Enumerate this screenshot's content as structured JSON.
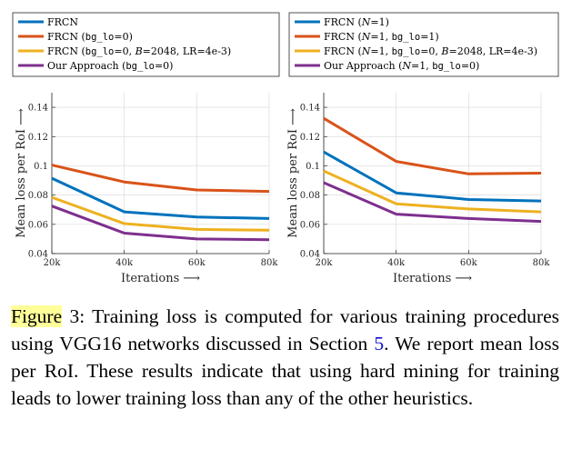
{
  "chart_data": [
    {
      "type": "line",
      "xlabel": "Iterations ⟶",
      "ylabel": "Mean loss per RoI ⟶",
      "x": [
        20000,
        40000,
        60000,
        80000
      ],
      "xticks": [
        "20k",
        "40k",
        "60k",
        "80k"
      ],
      "ylim": [
        0.04,
        0.15
      ],
      "yticks": [
        "0.04",
        "0.06",
        "0.08",
        "0.1",
        "0.12",
        "0.14"
      ],
      "grid": true,
      "legend": "top",
      "series": [
        {
          "name": "FRCN",
          "color": "#0072bd",
          "values": [
            0.0915,
            0.0685,
            0.065,
            0.064
          ]
        },
        {
          "name": "FRCN (bg_lo=0)",
          "color": "#d95319",
          "values": [
            0.1005,
            0.089,
            0.0835,
            0.0825
          ]
        },
        {
          "name": "FRCN (bg_lo=0, B=2048, LR=4e-3)",
          "color": "#edb120",
          "values": [
            0.0785,
            0.0605,
            0.0565,
            0.056
          ]
        },
        {
          "name": "Our Approach (bg_lo=0)",
          "color": "#7e2f8e",
          "values": [
            0.0725,
            0.054,
            0.05,
            0.0495
          ]
        }
      ]
    },
    {
      "type": "line",
      "xlabel": "Iterations ⟶",
      "ylabel": "Mean loss per RoI ⟶",
      "x": [
        20000,
        40000,
        60000,
        80000
      ],
      "xticks": [
        "20k",
        "40k",
        "60k",
        "80k"
      ],
      "ylim": [
        0.04,
        0.15
      ],
      "yticks": [
        "0.04",
        "0.06",
        "0.08",
        "0.1",
        "0.12",
        "0.14"
      ],
      "grid": true,
      "legend": "top",
      "series": [
        {
          "name": "FRCN (N=1)",
          "color": "#0072bd",
          "values": [
            0.1095,
            0.0815,
            0.077,
            0.076
          ]
        },
        {
          "name": "FRCN (N=1, bg_lo=1)",
          "color": "#d95319",
          "values": [
            0.1325,
            0.103,
            0.0945,
            0.095
          ]
        },
        {
          "name": "FRCN (N=1, bg_lo=0, B=2048, LR=4e-3)",
          "color": "#edb120",
          "values": [
            0.0965,
            0.074,
            0.0705,
            0.0685
          ]
        },
        {
          "name": "Our Approach (N=1, bg_lo=0)",
          "color": "#7e2f8e",
          "values": [
            0.0885,
            0.067,
            0.064,
            0.062
          ]
        }
      ]
    }
  ],
  "caption": {
    "figure_word": "Figure",
    "figure_num": " 3: Training loss is computed for various training procedures using VGG16 networks discussed in Section ",
    "section_ref": "5",
    "rest": ". We report mean loss per RoI. These results indicate that using hard mining for training leads to lower training loss than any of the other heuristics."
  }
}
